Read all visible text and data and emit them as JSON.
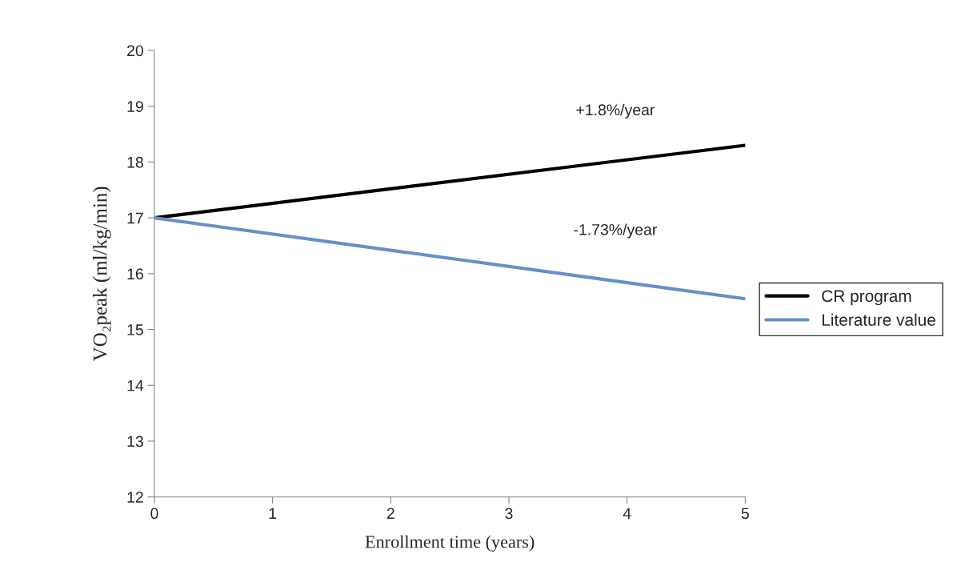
{
  "chart_data": {
    "type": "line",
    "xlabel": "Enrollment time (years)",
    "ylabel": "VO₂peak (ml/kg/min)",
    "x": [
      0,
      5
    ],
    "series": [
      {
        "name": "CR program",
        "color": "#000000",
        "values": [
          17,
          18.3
        ]
      },
      {
        "name": "Literature value",
        "color": "#6590c8",
        "values": [
          17,
          15.55
        ]
      }
    ],
    "xlim": [
      0,
      5
    ],
    "xticks": [
      0,
      1,
      2,
      3,
      4,
      5
    ],
    "ylim": [
      12,
      20
    ],
    "yticks": [
      12,
      13,
      14,
      15,
      16,
      17,
      18,
      19,
      20
    ],
    "annotations": [
      "+1.8%/year",
      "-1.73%/year"
    ],
    "grid": false,
    "legend": "right",
    "marker": "none",
    "line_style": "solid"
  }
}
